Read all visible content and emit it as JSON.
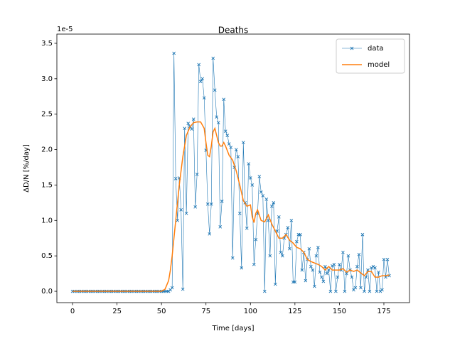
{
  "chart_data": {
    "type": "line",
    "title": "Deaths",
    "xlabel": "Time [days]",
    "ylabel": "ΔD/N [%/day]",
    "y_offset_label": "1e-5",
    "xlim": [
      -8.8,
      189.4
    ],
    "ylim": [
      -0.16,
      3.63
    ],
    "xticks": [
      0,
      25,
      50,
      75,
      100,
      125,
      150,
      175
    ],
    "yticks": [
      {
        "value": 0,
        "label": "0.0"
      },
      0.5,
      {
        "value": 1,
        "label": "1.0"
      },
      1.5,
      {
        "value": 2,
        "label": "2.0"
      },
      2.5,
      {
        "value": 3,
        "label": "3.0"
      },
      3.5
    ],
    "grid": false,
    "legend": "upper right",
    "series": [
      {
        "name": "data",
        "color": "#1f77b4",
        "marker": "x",
        "linewidth": 0.6,
        "x": [
          0,
          1,
          2,
          3,
          4,
          5,
          6,
          7,
          8,
          9,
          10,
          11,
          12,
          13,
          14,
          15,
          16,
          17,
          18,
          19,
          20,
          21,
          22,
          23,
          24,
          25,
          26,
          27,
          28,
          29,
          30,
          31,
          32,
          33,
          34,
          35,
          36,
          37,
          38,
          39,
          40,
          41,
          42,
          43,
          44,
          45,
          46,
          47,
          48,
          49,
          50,
          51,
          52,
          53,
          54,
          55,
          56,
          57,
          58,
          59,
          60,
          61,
          62,
          63,
          64,
          65,
          66,
          67,
          68,
          69,
          70,
          71,
          72,
          73,
          74,
          75,
          76,
          77,
          78,
          79,
          80,
          81,
          82,
          83,
          84,
          85,
          86,
          87,
          88,
          89,
          90,
          91,
          92,
          93,
          94,
          95,
          96,
          97,
          98,
          99,
          100,
          101,
          102,
          103,
          104,
          105,
          106,
          107,
          108,
          109,
          110,
          111,
          112,
          113,
          114,
          115,
          116,
          117,
          118,
          119,
          120,
          121,
          122,
          123,
          124,
          125,
          126,
          127,
          128,
          129,
          130,
          131,
          132,
          133,
          134,
          135,
          136,
          137,
          138,
          139,
          140,
          141,
          142,
          143,
          144,
          145,
          146,
          147,
          148,
          149,
          150,
          151,
          152,
          153,
          154,
          155,
          156,
          157,
          158,
          159,
          160,
          161,
          162,
          163,
          164,
          165,
          166,
          167,
          168,
          169,
          170,
          171,
          172,
          173,
          174,
          175,
          176,
          177,
          178
        ],
        "values": [
          0,
          0,
          0,
          0,
          0,
          0,
          0,
          0,
          0,
          0,
          0,
          0,
          0,
          0,
          0,
          0,
          0,
          0,
          0,
          0,
          0,
          0,
          0,
          0,
          0,
          0,
          0,
          0,
          0,
          0,
          0,
          0,
          0,
          0,
          0,
          0,
          0,
          0,
          0,
          0,
          0,
          0,
          0,
          0,
          0,
          0,
          0,
          0,
          0,
          0,
          0,
          0,
          0,
          0,
          0,
          0.02,
          0.05,
          3.36,
          1.59,
          1.0,
          1.6,
          1.15,
          0.03,
          2.3,
          1.1,
          2.37,
          2.33,
          2.29,
          2.43,
          1.19,
          1.65,
          3.2,
          2.96,
          3.0,
          2.73,
          1.99,
          1.23,
          0.81,
          1.23,
          3.29,
          2.84,
          2.46,
          2.38,
          0.91,
          1.27,
          2.71,
          2.26,
          2.2,
          2.08,
          2.03,
          0.47,
          1.75,
          2.0,
          1.9,
          1.1,
          0.33,
          2.1,
          1.25,
          0.89,
          1.8,
          1.6,
          1.5,
          0.38,
          0.73,
          1.1,
          1.62,
          1.4,
          1.35,
          0,
          1.3,
          1.0,
          0.5,
          1.2,
          1.25,
          0.1,
          0.85,
          1.05,
          0.55,
          0.5,
          0.75,
          0.8,
          0.9,
          0.6,
          1.0,
          0.13,
          0.13,
          0.7,
          0.8,
          0.8,
          0.3,
          0.55,
          0.15,
          0.45,
          0.6,
          0.35,
          0.3,
          0.07,
          0.5,
          0.62,
          0.27,
          0.2,
          0.14,
          0.35,
          0.25,
          0.3,
          0,
          0.36,
          0.38,
          0,
          0.2,
          0.38,
          0.3,
          0.55,
          0,
          0.25,
          0.5,
          0.3,
          0.2,
          0.02,
          0.05,
          0.35,
          0.52,
          0.05,
          0.8,
          0,
          0.2,
          0.3,
          0,
          0.33,
          0.35,
          0.33,
          0,
          0.27,
          0,
          0.02,
          0.45,
          0.2,
          0.45,
          0.22
        ]
      },
      {
        "name": "model",
        "color": "#ff7f0e",
        "linewidth": 1.5,
        "x": [
          0,
          45,
          50,
          52,
          54,
          55,
          56,
          57,
          58,
          60,
          62,
          64,
          66,
          68,
          70,
          72,
          74,
          75,
          76,
          77,
          78,
          79,
          80,
          81,
          82,
          83,
          84,
          85,
          86,
          88,
          90,
          92,
          94,
          96,
          98,
          100,
          101,
          102,
          103,
          104,
          106,
          108,
          110,
          112,
          114,
          116,
          118,
          120,
          122,
          124,
          126,
          128,
          130,
          132,
          134,
          136,
          138,
          140,
          142,
          144,
          146,
          148,
          150,
          152,
          154,
          156,
          158,
          160,
          162,
          164,
          166,
          168,
          170,
          172,
          174,
          176,
          178
        ],
        "values": [
          0,
          0,
          0,
          0.03,
          0.15,
          0.3,
          0.5,
          0.75,
          1.0,
          1.5,
          1.9,
          2.2,
          2.32,
          2.38,
          2.39,
          2.39,
          2.3,
          2.1,
          1.92,
          1.9,
          2.05,
          2.25,
          2.3,
          2.2,
          2.1,
          2.05,
          2.05,
          2.1,
          2.05,
          1.92,
          1.85,
          1.7,
          1.5,
          1.28,
          1.2,
          1.22,
          1.05,
          0.97,
          1.1,
          1.15,
          1.0,
          0.98,
          1.08,
          0.95,
          0.85,
          0.75,
          0.75,
          0.8,
          0.72,
          0.68,
          0.62,
          0.6,
          0.55,
          0.45,
          0.42,
          0.4,
          0.38,
          0.35,
          0.3,
          0.35,
          0.3,
          0.3,
          0.3,
          0.32,
          0.27,
          0.3,
          0.28,
          0.3,
          0.26,
          0.22,
          0.28,
          0.28,
          0.2,
          0.2,
          0.22,
          0.22,
          0.23
        ]
      }
    ]
  }
}
